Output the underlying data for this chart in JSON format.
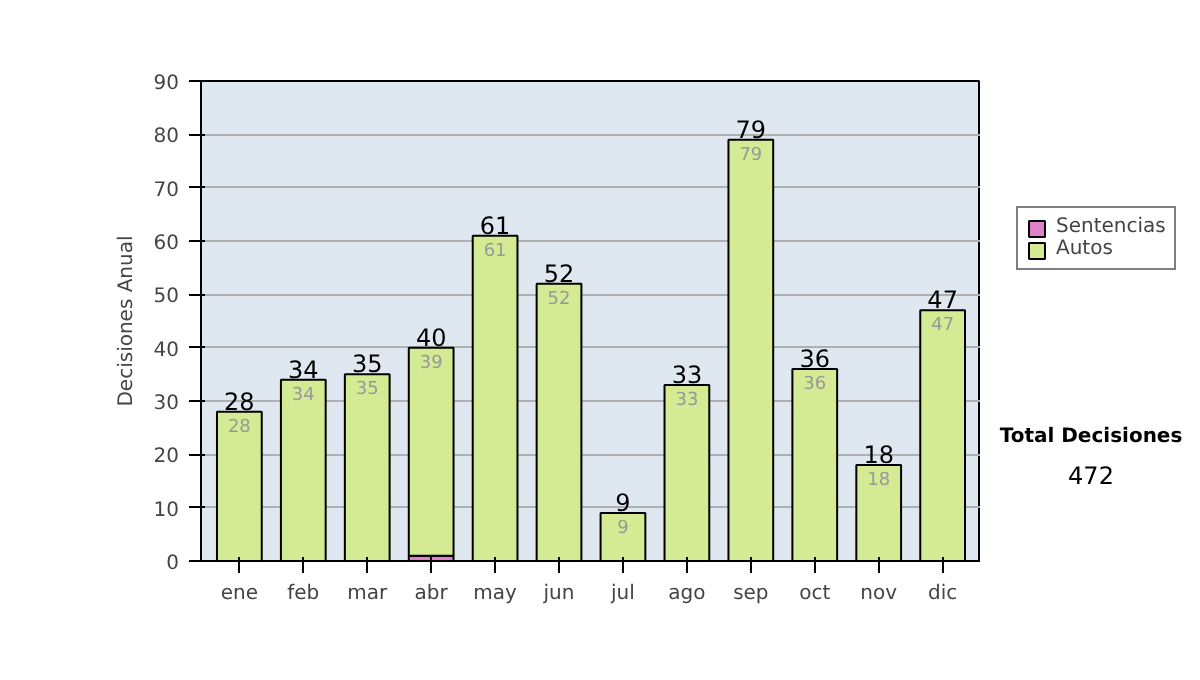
{
  "chart_data": {
    "type": "bar",
    "stacked": true,
    "ylabel": "Decisiones Anual",
    "categories": [
      "ene",
      "feb",
      "mar",
      "abr",
      "may",
      "jun",
      "jul",
      "ago",
      "sep",
      "oct",
      "nov",
      "dic"
    ],
    "series": [
      {
        "name": "Sentencias",
        "color": "#e080c8",
        "values": [
          0,
          0,
          0,
          1,
          0,
          0,
          0,
          0,
          0,
          0,
          0,
          0
        ]
      },
      {
        "name": "Autos",
        "color": "#d4eb94",
        "values": [
          28,
          34,
          35,
          39,
          61,
          52,
          9,
          33,
          79,
          36,
          18,
          47
        ],
        "value_labels": [
          "28",
          "34",
          "35",
          "39",
          "61",
          "52",
          "9",
          "33",
          "79",
          "36",
          "18",
          "47"
        ]
      }
    ],
    "totals": [
      "28",
      "34",
      "35",
      "40",
      "61",
      "52",
      "9",
      "33",
      "79",
      "36",
      "18",
      "47"
    ],
    "ylim": [
      0,
      90
    ],
    "yticks": [
      0,
      10,
      20,
      30,
      40,
      50,
      60,
      70,
      80,
      90
    ],
    "grid": "y",
    "legend": "right",
    "annotations": [
      "Total Decisiones",
      "472"
    ]
  }
}
